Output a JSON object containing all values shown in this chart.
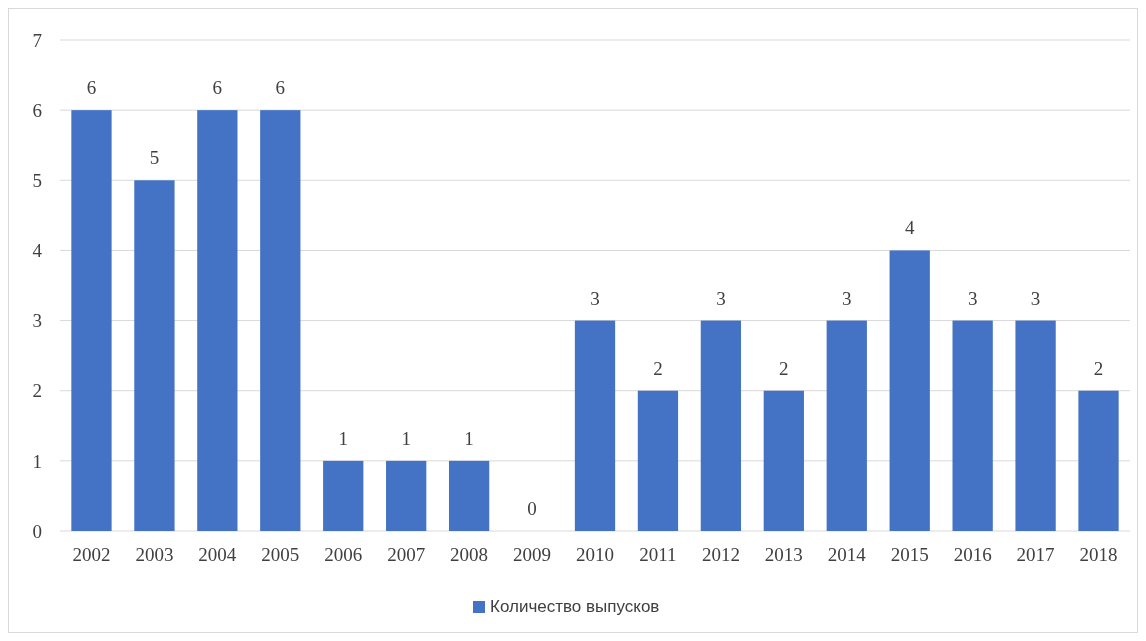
{
  "chart_data": {
    "type": "bar",
    "categories": [
      "2002",
      "2003",
      "2004",
      "2005",
      "2006",
      "2007",
      "2008",
      "2009",
      "2010",
      "2011",
      "2012",
      "2013",
      "2014",
      "2015",
      "2016",
      "2017",
      "2018"
    ],
    "series": [
      {
        "name": "Количество выпусков",
        "color": "#4472c4",
        "values": [
          6,
          5,
          6,
          6,
          1,
          1,
          1,
          0,
          3,
          2,
          3,
          2,
          3,
          4,
          3,
          3,
          2
        ]
      }
    ],
    "ylim": [
      0,
      7
    ],
    "yticks": [
      0,
      1,
      2,
      3,
      4,
      5,
      6,
      7
    ],
    "grid": "y",
    "legend": "bottom",
    "data_labels": true
  }
}
